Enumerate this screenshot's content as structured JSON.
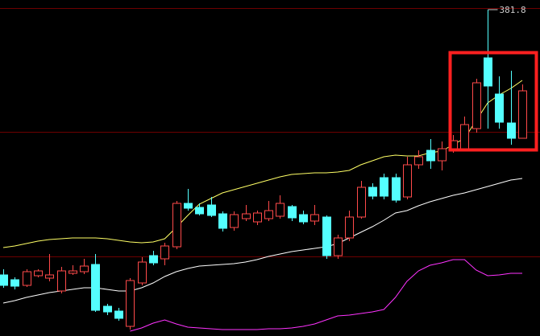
{
  "chart_data": {
    "type": "candlestick",
    "up_color": "#ff4a4a",
    "down_color": "#54ffff",
    "ylim": [
      300.6,
      384.2
    ],
    "open": [
      315.8,
      314.6,
      313.2,
      315.6,
      315.0,
      311.8,
      316.2,
      316.6,
      318.4,
      308.0,
      306.8,
      303.0,
      313.8,
      320.6,
      319.8,
      322.8,
      333.6,
      332.6,
      333.2,
      331.0,
      327.6,
      329.8,
      329.0,
      329.8,
      330.4,
      332.8,
      330.8,
      329.2,
      330.2,
      320.6,
      325.0,
      330.2,
      337.6,
      340.0,
      340.0,
      335.2,
      343.2,
      346.8,
      344.2,
      346.8,
      347.2,
      352.2,
      369.8,
      360.8,
      353.6,
      349.8
    ],
    "high": [
      317.2,
      315.2,
      317.2,
      317.2,
      321.0,
      317.8,
      318.2,
      319.8,
      321.0,
      308.6,
      307.6,
      315.0,
      320.2,
      321.8,
      323.8,
      334.2,
      337.2,
      333.6,
      335.2,
      331.6,
      331.6,
      333.2,
      331.8,
      334.2,
      335.6,
      333.2,
      331.8,
      333.2,
      330.6,
      325.8,
      331.8,
      339.2,
      338.6,
      341.0,
      341.0,
      345.2,
      346.8,
      349.6,
      349.0,
      350.6,
      355.2,
      364.6,
      381.8,
      365.2,
      366.6,
      363.2
    ],
    "low": [
      312.6,
      312.2,
      312.8,
      315.2,
      314.2,
      311.2,
      315.8,
      316.0,
      306.6,
      305.8,
      304.4,
      302.2,
      313.2,
      318.2,
      318.2,
      322.2,
      331.8,
      330.6,
      330.2,
      326.6,
      326.8,
      329.2,
      328.2,
      329.2,
      329.8,
      329.2,
      328.4,
      328.2,
      319.8,
      319.8,
      324.2,
      329.8,
      334.6,
      334.6,
      333.8,
      334.6,
      342.2,
      342.2,
      341.8,
      346.2,
      346.6,
      351.2,
      352.2,
      352.2,
      348.2,
      349.8
    ],
    "close": [
      313.2,
      313.0,
      316.6,
      316.8,
      315.8,
      316.8,
      316.8,
      318.0,
      307.0,
      306.6,
      305.0,
      314.4,
      319.0,
      318.8,
      323.0,
      333.6,
      332.4,
      331.0,
      330.6,
      327.4,
      330.8,
      331.0,
      331.2,
      331.8,
      333.6,
      330.0,
      329.0,
      330.8,
      320.6,
      325.0,
      330.2,
      337.6,
      335.4,
      335.4,
      334.4,
      343.2,
      345.2,
      344.2,
      347.2,
      349.2,
      353.2,
      363.6,
      362.8,
      353.8,
      349.8,
      361.6
    ],
    "series": [
      {
        "color": "#ffff66",
        "values": [
          322.6,
          323.0,
          323.6,
          324.2,
          324.6,
          324.8,
          325.0,
          325.0,
          325.0,
          324.8,
          324.4,
          324.0,
          323.8,
          324.0,
          324.8,
          327.6,
          330.6,
          333.4,
          334.8,
          336.2,
          337.0,
          337.8,
          338.6,
          339.4,
          340.2,
          340.8,
          341.0,
          341.2,
          341.2,
          341.4,
          341.8,
          343.2,
          344.2,
          345.2,
          345.6,
          345.4,
          345.4,
          346.2,
          346.6,
          348.2,
          349.8,
          354.2,
          358.6,
          360.6,
          362.2,
          364.2
        ]
      },
      {
        "color": "#ffffff",
        "values": [
          308.8,
          309.4,
          310.2,
          310.8,
          311.4,
          311.8,
          312.2,
          312.6,
          312.6,
          312.2,
          311.8,
          311.8,
          312.6,
          313.8,
          315.4,
          316.6,
          317.4,
          318.0,
          318.2,
          318.4,
          318.6,
          319.0,
          319.6,
          320.4,
          321.0,
          321.6,
          322.0,
          322.4,
          322.8,
          323.6,
          325.0,
          326.4,
          327.8,
          329.4,
          331.2,
          331.8,
          333.0,
          334.0,
          334.8,
          335.6,
          336.2,
          337.0,
          337.8,
          338.6,
          339.4,
          339.8
        ]
      },
      {
        "color": "#ff33ff",
        "values": [
          null,
          null,
          null,
          null,
          null,
          null,
          null,
          null,
          null,
          null,
          null,
          301.8,
          302.6,
          303.8,
          304.6,
          303.6,
          302.8,
          302.6,
          302.4,
          302.2,
          302.2,
          302.2,
          302.2,
          302.4,
          302.4,
          302.6,
          303.0,
          303.6,
          304.6,
          305.6,
          305.8,
          306.2,
          306.6,
          307.2,
          310.2,
          314.2,
          316.8,
          318.2,
          318.8,
          319.6,
          319.6,
          317.0,
          315.6,
          315.8,
          316.2,
          316.2
        ]
      }
    ]
  }
}
